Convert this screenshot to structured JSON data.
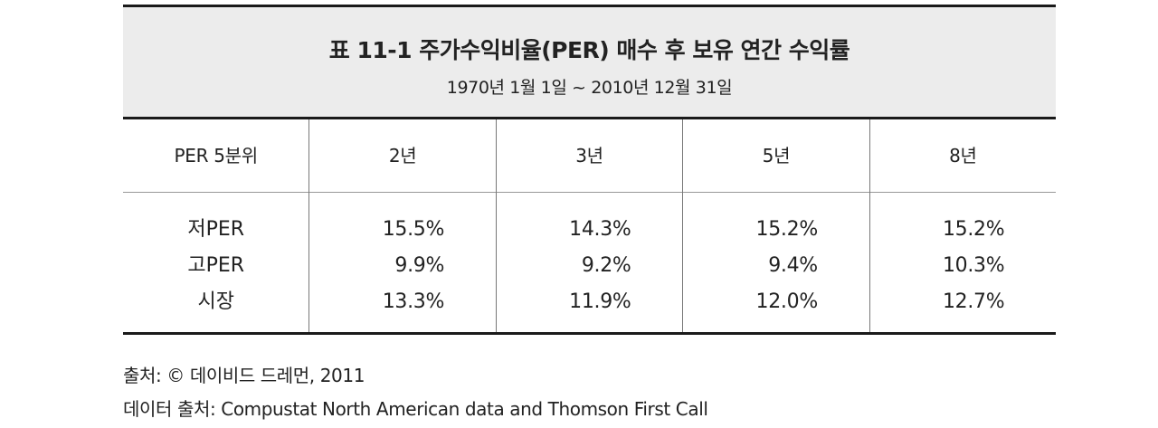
{
  "table": {
    "title": "표 11-1  주가수익비율(PER) 매수 후 보유 연간 수익률",
    "subtitle": "1970년 1월 1일 ~ 2010년 12월 31일",
    "headers": [
      "PER 5분위",
      "2년",
      "3년",
      "5년",
      "8년"
    ],
    "row_labels": [
      "저PER",
      "고PER",
      "시장"
    ],
    "columns": [
      [
        "15.5%",
        "9.9%",
        "13.3%"
      ],
      [
        "14.3%",
        "9.2%",
        "11.9%"
      ],
      [
        "15.2%",
        "9.4%",
        "12.0%"
      ],
      [
        "15.2%",
        "10.3%",
        "12.7%"
      ]
    ]
  },
  "footer": {
    "source": "출처: © 데이비드 드레먼, 2011",
    "data_source": "데이터 출처: Compustat North American data and Thomson First Call"
  }
}
